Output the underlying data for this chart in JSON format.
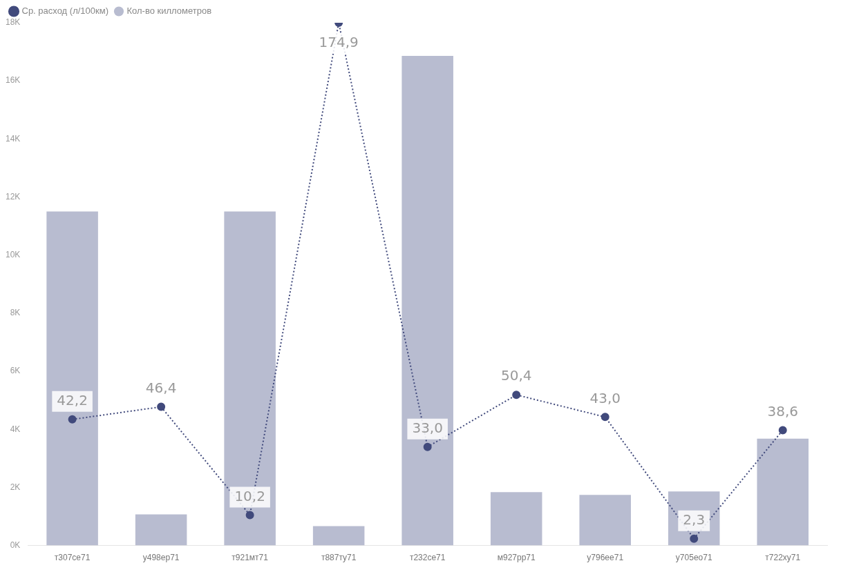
{
  "chart_data": {
    "type": "bar",
    "categories": [
      "т307се71",
      "у498ер71",
      "т921мт71",
      "т887ту71",
      "т232се71",
      "м927рр71",
      "у796ее71",
      "у705ео71",
      "т722ху71"
    ],
    "series": [
      {
        "name": "Кол-во киллометров",
        "color": "#b8bcd0",
        "values": [
          11500,
          1070,
          11500,
          670,
          16860,
          1840,
          1740,
          1860,
          3680
        ]
      },
      {
        "name": "Ср. расход (л/100км)",
        "type": "line",
        "axis": "y2",
        "color": "#414a7c",
        "marker": "circle",
        "line_style": "dotted",
        "values": [
          42.2,
          46.4,
          10.2,
          174.9,
          33.0,
          50.4,
          43.0,
          2.3,
          38.6
        ],
        "value_labels": [
          "42,2",
          "46,4",
          "10,2",
          "174,9",
          "33,0",
          "50,4",
          "43,0",
          "2,3",
          "38,6"
        ]
      }
    ],
    "ylim": [
      0,
      18000
    ],
    "yticks": [
      {
        "value": 0,
        "label": "0K"
      },
      {
        "value": 2000,
        "label": "2K"
      },
      {
        "value": 4000,
        "label": "4K"
      },
      {
        "value": 6000,
        "label": "6K"
      },
      {
        "value": 8000,
        "label": "8K"
      },
      {
        "value": 10000,
        "label": "10K"
      },
      {
        "value": 12000,
        "label": "12K"
      },
      {
        "value": 14000,
        "label": "14K"
      },
      {
        "value": 16000,
        "label": "16K"
      },
      {
        "value": 18000,
        "label": "18K"
      }
    ],
    "grid": false,
    "legend": "top left"
  }
}
